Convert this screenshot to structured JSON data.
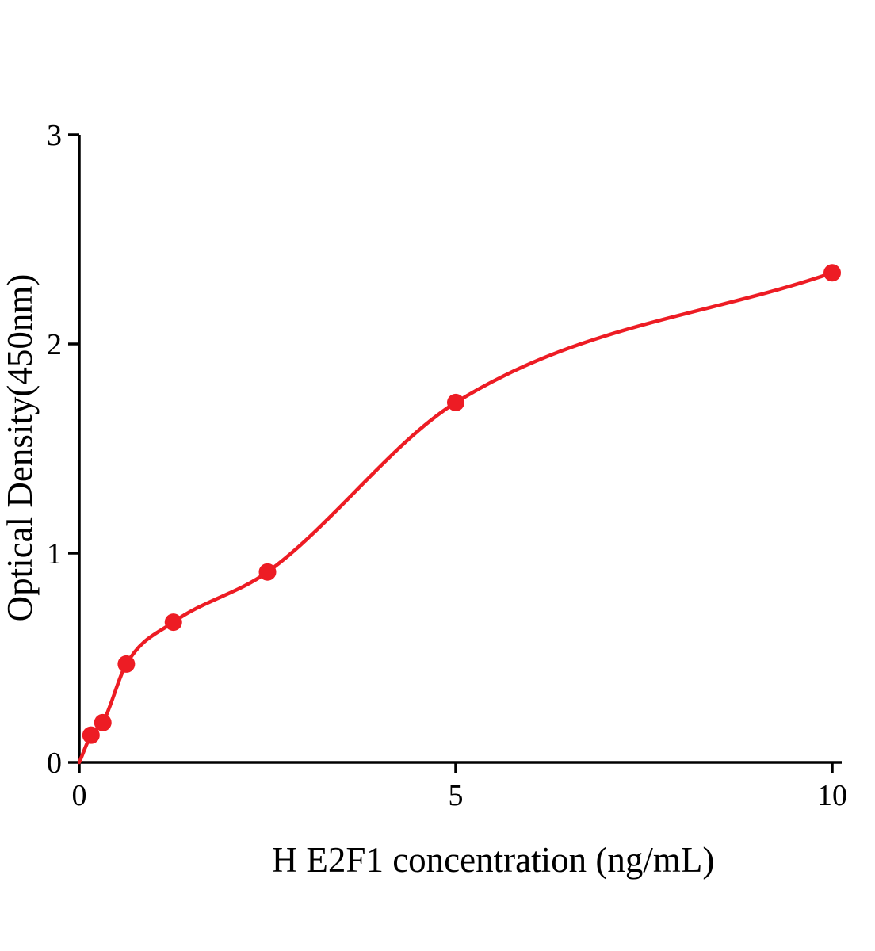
{
  "chart_data": {
    "type": "scatter",
    "title": "",
    "xlabel": "H E2F1 concentration (ng/mL)",
    "ylabel": "Optical Density(450nm)",
    "x": [
      0.156,
      0.313,
      0.625,
      1.25,
      2.5,
      5,
      10
    ],
    "y": [
      0.13,
      0.19,
      0.47,
      0.67,
      0.91,
      1.72,
      2.34
    ],
    "fit_curve_through_origin": true,
    "xlim": [
      0,
      10
    ],
    "ylim": [
      0,
      3
    ],
    "xticks": [
      0,
      5,
      10
    ],
    "yticks": [
      0,
      1,
      2,
      3
    ],
    "grid": false,
    "legend": false,
    "point_color": "#ed1c24",
    "curve_color": "#ed1c24",
    "axis_color": "#000000",
    "background_color": "#ffffff"
  }
}
